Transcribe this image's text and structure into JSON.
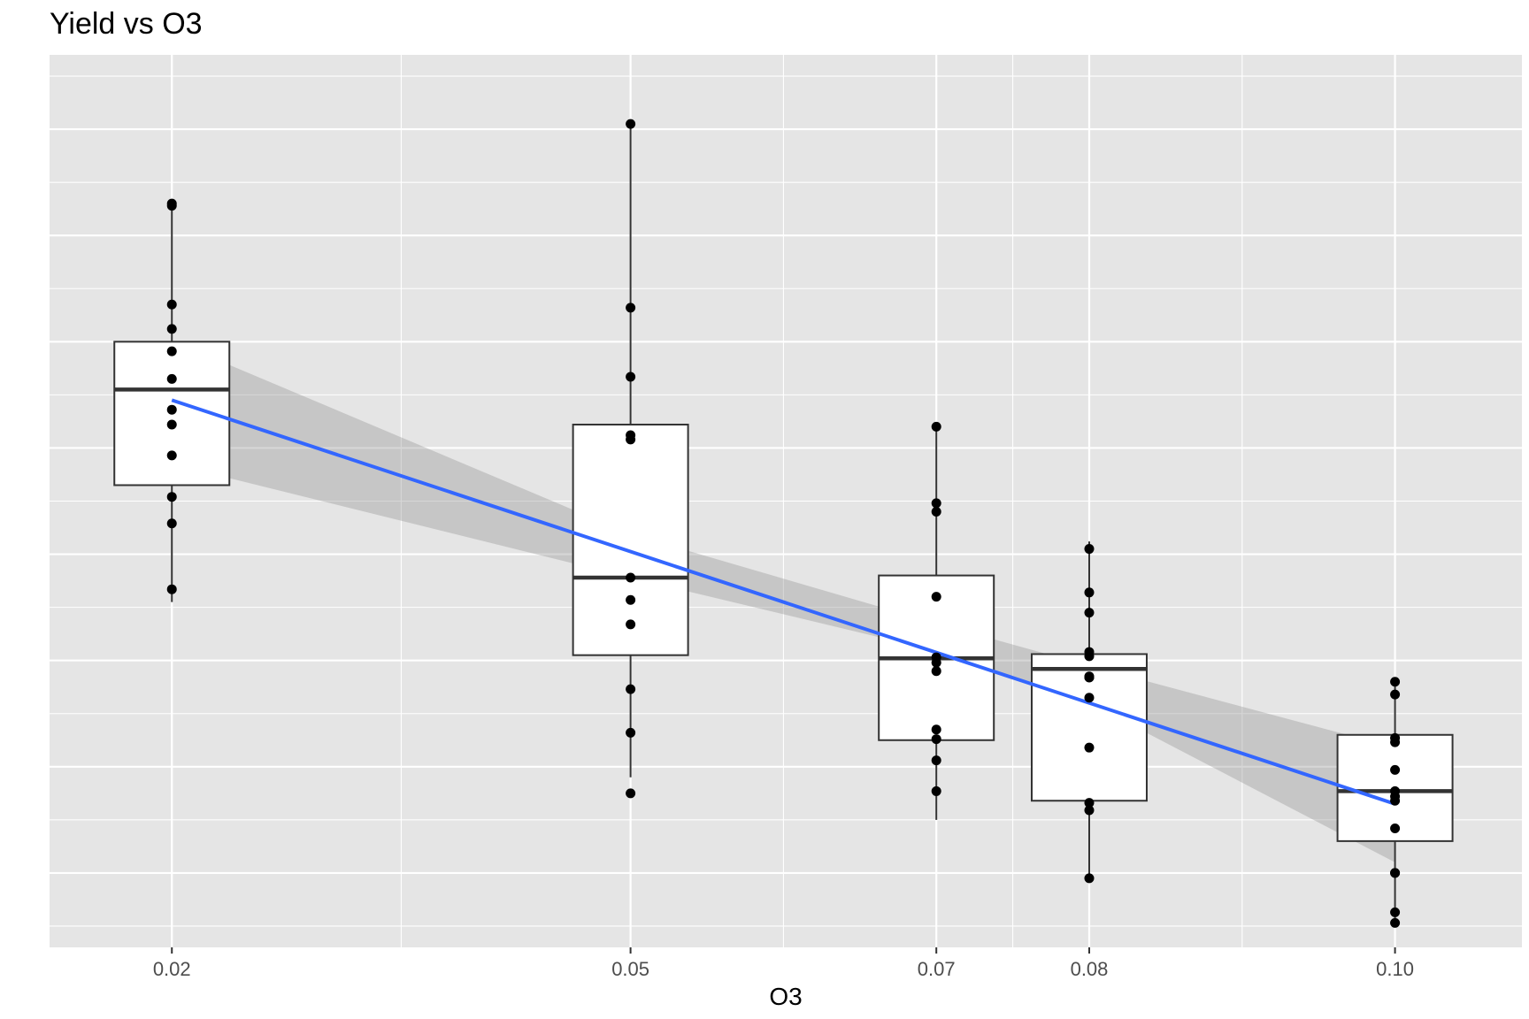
{
  "chart_data": {
    "type": "box",
    "title": "Yield vs O3",
    "xlabel": "O3",
    "ylabel": "",
    "x_ticks": [
      "0.02",
      "0.05",
      "0.07",
      "0.08",
      "0.10"
    ],
    "x_range": [
      0.012,
      0.1083
    ],
    "y_range": [
      0.3,
      8.7
    ],
    "y_axis_tick_labels_shown": false,
    "grid": true,
    "panel_background": "#e5e5e5",
    "groups": [
      {
        "x": 0.02,
        "box": {
          "whisker_low": 3.55,
          "q1": 4.65,
          "median": 5.55,
          "q3": 6.0,
          "whisker_high": 7.25
        },
        "points": [
          7.3,
          7.28,
          6.35,
          6.12,
          5.91,
          5.65,
          5.36,
          5.22,
          4.93,
          4.54,
          4.29,
          3.67
        ]
      },
      {
        "x": 0.05,
        "box": {
          "whisker_low": 1.9,
          "q1": 3.05,
          "median": 3.78,
          "q3": 5.22,
          "whisker_high": 8.05
        },
        "points": [
          8.05,
          6.32,
          5.67,
          5.12,
          5.08,
          3.78,
          3.57,
          3.34,
          2.73,
          2.32,
          1.75
        ]
      },
      {
        "x": 0.07,
        "box": {
          "whisker_low": 1.5,
          "q1": 2.25,
          "median": 3.02,
          "q3": 3.8,
          "whisker_high": 5.2
        },
        "points": [
          5.2,
          4.48,
          4.4,
          3.6,
          3.03,
          2.98,
          2.9,
          2.35,
          2.26,
          2.06,
          1.77
        ]
      },
      {
        "x": 0.08,
        "box": {
          "whisker_low": 0.95,
          "q1": 1.68,
          "median": 2.92,
          "q3": 3.06,
          "whisker_high": 4.12
        },
        "points": [
          4.05,
          3.64,
          3.45,
          3.08,
          3.04,
          2.85,
          2.84,
          2.84,
          2.65,
          2.18,
          1.66,
          1.59,
          0.95
        ]
      },
      {
        "x": 0.1,
        "box": {
          "whisker_low": 0.55,
          "q1": 1.3,
          "median": 1.77,
          "q3": 2.3,
          "whisker_high": 2.8
        },
        "points": [
          2.8,
          2.68,
          2.27,
          2.23,
          1.97,
          1.77,
          1.72,
          1.68,
          1.42,
          1.0,
          1.0,
          0.63,
          0.53
        ]
      }
    ],
    "trend_line": {
      "x": [
        0.02,
        0.1
      ],
      "y": [
        5.45,
        1.65
      ],
      "color": "#3366ff",
      "ci_band": {
        "x": [
          0.02,
          0.05,
          0.07,
          0.08,
          0.1
        ],
        "lower": [
          4.85,
          3.78,
          3.09,
          2.6,
          1.1
        ],
        "upper": [
          6.01,
          4.19,
          3.35,
          2.95,
          2.18
        ]
      }
    }
  }
}
